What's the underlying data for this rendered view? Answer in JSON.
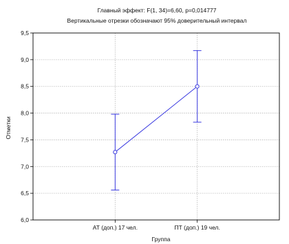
{
  "chart_data": {
    "type": "line",
    "title": "Главный эффект: F(1, 34)=6,60, p=0,014777",
    "subtitle": "Вертикальные отрезки обозначают 95% доверительный интервал",
    "xlabel": "Группа",
    "ylabel": "Отметки",
    "categories": [
      "АТ (доп.) 17 чел.",
      "ПТ (доп.) 19 чел."
    ],
    "series": [
      {
        "values": [
          7.27,
          8.5
        ],
        "ci_lower": [
          6.56,
          7.83
        ],
        "ci_upper": [
          7.98,
          9.17
        ]
      }
    ],
    "ylim": [
      6.0,
      9.5
    ],
    "yticks": [
      "6,0",
      "6,5",
      "7,0",
      "7,5",
      "8,0",
      "8,5",
      "9,0",
      "9,5"
    ],
    "grid": true,
    "colors": {
      "line": "#3a3ae0",
      "grid": "#b8b8b8",
      "axis": "#000000"
    }
  }
}
